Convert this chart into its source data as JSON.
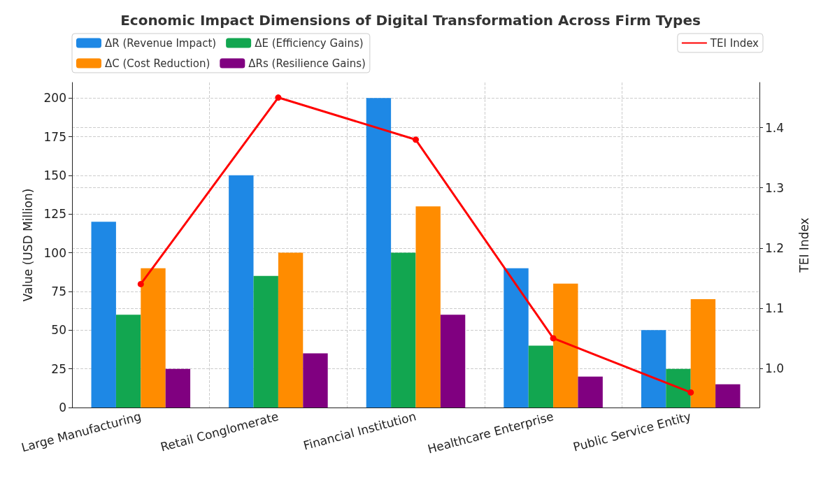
{
  "chart_data": {
    "type": "bar",
    "title": "Economic Impact Dimensions of Digital Transformation Across Firm Types",
    "categories": [
      "Large Manufacturing",
      "Retail Conglomerate",
      "Financial Institution",
      "Healthcare Enterprise",
      "Public Service Entity"
    ],
    "ylabel": "Value (USD Million)",
    "y2label": "TEI Index",
    "series": [
      {
        "name": "ΔR (Revenue Impact)",
        "color": "#1e88e5",
        "values": [
          120,
          150,
          200,
          90,
          50
        ]
      },
      {
        "name": "ΔE (Efficiency Gains)",
        "color": "#12a650",
        "values": [
          60,
          85,
          100,
          40,
          25
        ]
      },
      {
        "name": "ΔC (Cost Reduction)",
        "color": "#ff8c00",
        "values": [
          90,
          100,
          130,
          80,
          70
        ]
      },
      {
        "name": "ΔRs (Resilience Gains)",
        "color": "#800080",
        "values": [
          25,
          35,
          60,
          20,
          15
        ]
      },
      {
        "name": "TEI Index",
        "type": "line",
        "axis": "y2",
        "color": "#ff0000",
        "marker": "circle",
        "values": [
          1.14,
          1.45,
          1.38,
          1.05,
          0.96
        ]
      }
    ],
    "ylim": [
      0,
      210
    ],
    "yticks": [
      0,
      25,
      50,
      75,
      100,
      125,
      150,
      175,
      200
    ],
    "y2lim": [
      0.935,
      1.475
    ],
    "y2ticks": [
      {
        "value": 1.0,
        "label": "1.0"
      },
      {
        "value": 1.1,
        "label": "1.1"
      },
      {
        "value": 1.2,
        "label": "1.2"
      },
      {
        "value": 1.3,
        "label": "1.3"
      },
      {
        "value": 1.4,
        "label": "1.4"
      }
    ],
    "grid": true,
    "legend": "top"
  }
}
